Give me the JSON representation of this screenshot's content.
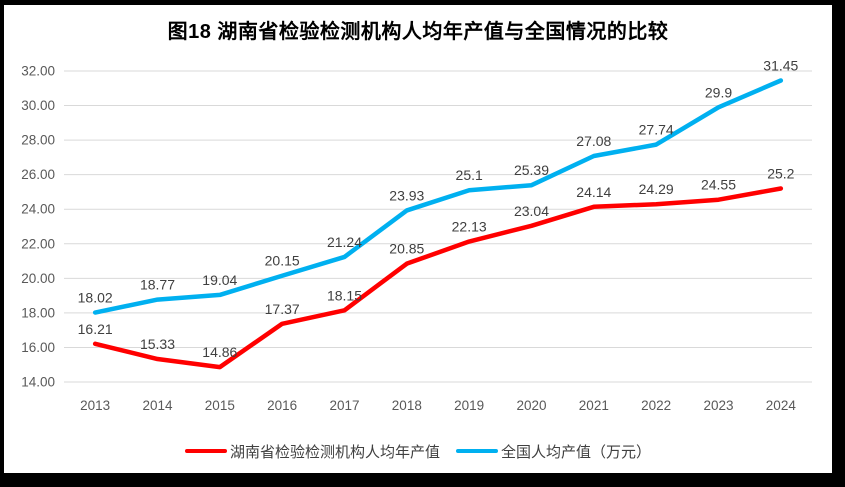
{
  "title": "图18 湖南省检验检测机构人均年产值与全国情况的比较",
  "chart_data": {
    "type": "line",
    "categories": [
      "2013",
      "2014",
      "2015",
      "2016",
      "2017",
      "2018",
      "2019",
      "2020",
      "2021",
      "2022",
      "2023",
      "2024"
    ],
    "series": [
      {
        "name": "湖南省检验检测机构人均年产值",
        "color": "#FF0000",
        "values": [
          16.21,
          15.33,
          14.86,
          17.37,
          18.15,
          20.85,
          22.13,
          23.04,
          24.14,
          24.29,
          24.55,
          25.2
        ],
        "labels": [
          "16.21",
          "15.33",
          "14.86",
          "17.37",
          "18.15",
          "20.85",
          "22.13",
          "23.04",
          "24.14",
          "24.29",
          "24.55",
          "25.2"
        ]
      },
      {
        "name": "全国人均产值（万元）",
        "color": "#00B0F0",
        "values": [
          18.02,
          18.77,
          19.04,
          20.15,
          21.24,
          23.93,
          25.1,
          25.39,
          27.08,
          27.74,
          29.9,
          31.45
        ],
        "labels": [
          "18.02",
          "18.77",
          "19.04",
          "20.15",
          "21.24",
          "23.93",
          "25.1",
          "25.39",
          "27.08",
          "27.74",
          "29.9",
          "31.45"
        ]
      }
    ],
    "title": "图18 湖南省检验检测机构人均年产值与全国情况的比较",
    "xlabel": "",
    "ylabel": "",
    "ylim": [
      14,
      32
    ],
    "y_tick_step": 2,
    "y_ticks": [
      "14.00",
      "16.00",
      "18.00",
      "20.00",
      "22.00",
      "24.00",
      "26.00",
      "28.00",
      "30.00",
      "32.00"
    ],
    "grid": true,
    "legend_position": "bottom"
  },
  "colors": {
    "background": "#FFFFFF",
    "frame": "#000000",
    "grid": "#D9D9D9",
    "axis_text": "#595959",
    "label_text": "#404040",
    "title_text": "#000000",
    "series_hunan": "#FF0000",
    "series_national": "#00B0F0"
  }
}
